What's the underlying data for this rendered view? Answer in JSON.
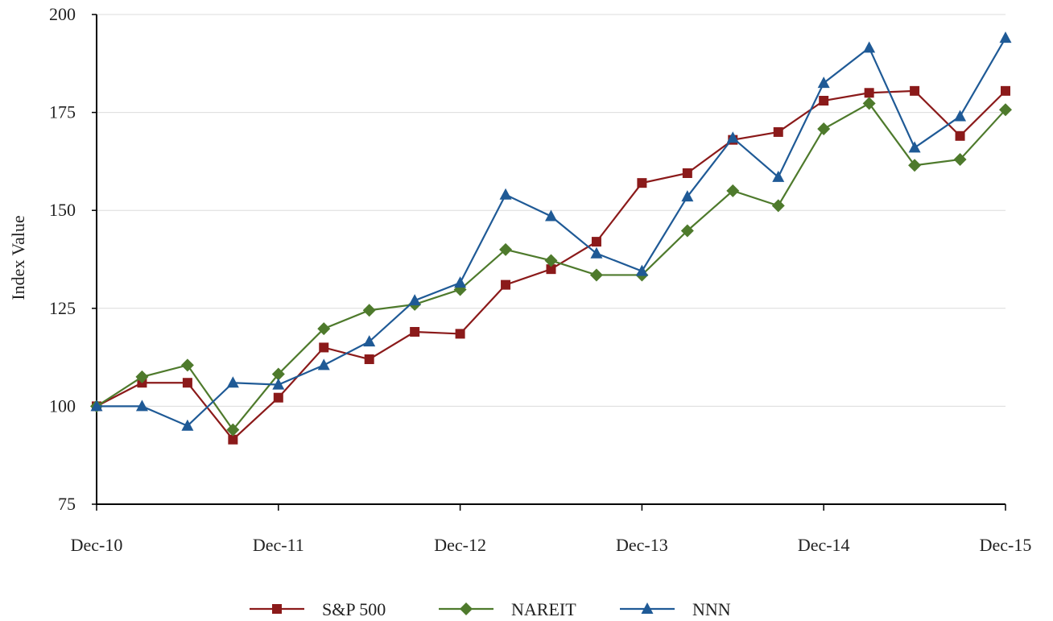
{
  "chart_data": {
    "type": "line",
    "title": "",
    "xlabel": "",
    "ylabel": "Index Value",
    "ylim": [
      75,
      200
    ],
    "yticks": [
      75,
      100,
      125,
      150,
      175,
      200
    ],
    "x_tick_labels": [
      "Dec-10",
      "Dec-11",
      "Dec-12",
      "Dec-13",
      "Dec-14",
      "Dec-15"
    ],
    "x": [
      "Dec-10",
      "Mar-11",
      "Jun-11",
      "Sep-11",
      "Dec-11",
      "Mar-12",
      "Jun-12",
      "Sep-12",
      "Dec-12",
      "Mar-13",
      "Jun-13",
      "Sep-13",
      "Dec-13",
      "Mar-14",
      "Jun-14",
      "Sep-14",
      "Dec-14",
      "Mar-15",
      "Jun-15",
      "Sep-15",
      "Dec-15"
    ],
    "grid": "horizontal",
    "legend_position": "bottom",
    "series": [
      {
        "name": "S&P 500",
        "color": "#8b1a1a",
        "marker": "square",
        "values": [
          100,
          106,
          106,
          91.5,
          102.2,
          115,
          112,
          119,
          118.5,
          131,
          135,
          142,
          157,
          159.5,
          168,
          170,
          178,
          180,
          180.5,
          169,
          180.5
        ]
      },
      {
        "name": "NAREIT",
        "color": "#4e7a2c",
        "marker": "diamond",
        "values": [
          100,
          107.5,
          110.5,
          94,
          108.2,
          119.8,
          124.5,
          126,
          129.8,
          140,
          137.2,
          133.5,
          133.5,
          144.8,
          155,
          151.2,
          170.8,
          177.3,
          161.5,
          163,
          175.7
        ]
      },
      {
        "name": "NNN",
        "color": "#1f5a96",
        "marker": "triangle",
        "values": [
          100,
          100,
          95,
          106,
          105.5,
          110.5,
          116.5,
          127,
          131.5,
          154,
          148.5,
          139,
          134.5,
          153.5,
          168.5,
          158.5,
          182.5,
          191.5,
          166,
          174,
          194
        ]
      }
    ]
  }
}
